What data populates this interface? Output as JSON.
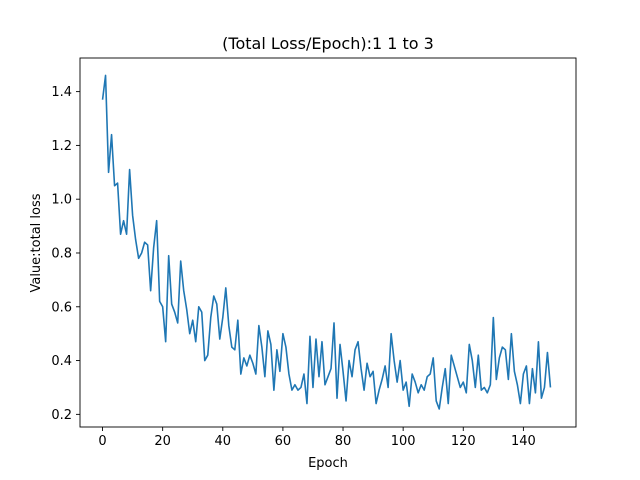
{
  "chart_data": {
    "type": "line",
    "title": "(Total Loss/Epoch):1 1 to 3",
    "xlabel": "Epoch",
    "ylabel": "Value:total loss",
    "xlim": [
      -7.5,
      157.5
    ],
    "ylim": [
      0.153,
      1.525
    ],
    "xticks": [
      0,
      20,
      40,
      60,
      80,
      100,
      120,
      140
    ],
    "yticks": [
      0.2,
      0.4,
      0.6,
      0.8,
      1.0,
      1.2,
      1.4
    ],
    "xtick_labels": [
      "0",
      "20",
      "40",
      "60",
      "80",
      "100",
      "120",
      "140"
    ],
    "ytick_labels": [
      "0.2",
      "0.4",
      "0.6",
      "0.8",
      "1.0",
      "1.2",
      "1.4"
    ],
    "grid": false,
    "line_color": "#1f77b4",
    "series": [
      {
        "x": [
          0,
          1,
          2,
          3,
          4,
          5,
          6,
          7,
          8,
          9,
          10,
          11,
          12,
          13,
          14,
          15,
          16,
          17,
          18,
          19,
          20,
          21,
          22,
          23,
          24,
          25,
          26,
          27,
          28,
          29,
          30,
          31,
          32,
          33,
          34,
          35,
          36,
          37,
          38,
          39,
          40,
          41,
          42,
          43,
          44,
          45,
          46,
          47,
          48,
          49,
          50,
          51,
          52,
          53,
          54,
          55,
          56,
          57,
          58,
          59,
          60,
          61,
          62,
          63,
          64,
          65,
          66,
          67,
          68,
          69,
          70,
          71,
          72,
          73,
          74,
          75,
          76,
          77,
          78,
          79,
          80,
          81,
          82,
          83,
          84,
          85,
          86,
          87,
          88,
          89,
          90,
          91,
          92,
          93,
          94,
          95,
          96,
          97,
          98,
          99,
          100,
          101,
          102,
          103,
          104,
          105,
          106,
          107,
          108,
          109,
          110,
          111,
          112,
          113,
          114,
          115,
          116,
          117,
          118,
          119,
          120,
          121,
          122,
          123,
          124,
          125,
          126,
          127,
          128,
          129,
          130,
          131,
          132,
          133,
          134,
          135,
          136,
          137,
          138,
          139,
          140,
          141,
          142,
          143,
          144,
          145,
          146,
          147,
          148,
          149
        ],
        "values": [
          1.37,
          1.46,
          1.1,
          1.24,
          1.05,
          1.06,
          0.87,
          0.92,
          0.87,
          1.11,
          0.94,
          0.85,
          0.78,
          0.8,
          0.84,
          0.83,
          0.66,
          0.82,
          0.92,
          0.62,
          0.6,
          0.47,
          0.79,
          0.61,
          0.58,
          0.54,
          0.77,
          0.66,
          0.59,
          0.5,
          0.55,
          0.47,
          0.6,
          0.58,
          0.4,
          0.42,
          0.56,
          0.64,
          0.61,
          0.48,
          0.56,
          0.67,
          0.53,
          0.45,
          0.44,
          0.55,
          0.35,
          0.41,
          0.38,
          0.42,
          0.39,
          0.35,
          0.53,
          0.45,
          0.34,
          0.51,
          0.46,
          0.29,
          0.44,
          0.36,
          0.5,
          0.45,
          0.35,
          0.29,
          0.31,
          0.29,
          0.3,
          0.35,
          0.24,
          0.49,
          0.3,
          0.48,
          0.34,
          0.47,
          0.31,
          0.34,
          0.37,
          0.54,
          0.26,
          0.46,
          0.36,
          0.25,
          0.4,
          0.34,
          0.44,
          0.47,
          0.37,
          0.29,
          0.39,
          0.34,
          0.36,
          0.24,
          0.29,
          0.33,
          0.38,
          0.3,
          0.5,
          0.4,
          0.32,
          0.4,
          0.29,
          0.32,
          0.23,
          0.35,
          0.32,
          0.28,
          0.31,
          0.29,
          0.34,
          0.35,
          0.41,
          0.25,
          0.22,
          0.3,
          0.37,
          0.24,
          0.42,
          0.38,
          0.34,
          0.3,
          0.32,
          0.28,
          0.46,
          0.4,
          0.3,
          0.42,
          0.29,
          0.3,
          0.28,
          0.31,
          0.56,
          0.33,
          0.41,
          0.45,
          0.44,
          0.33,
          0.5,
          0.36,
          0.31,
          0.24,
          0.35,
          0.38,
          0.24,
          0.37,
          0.28,
          0.47,
          0.26,
          0.3,
          0.43,
          0.3
        ]
      }
    ]
  }
}
